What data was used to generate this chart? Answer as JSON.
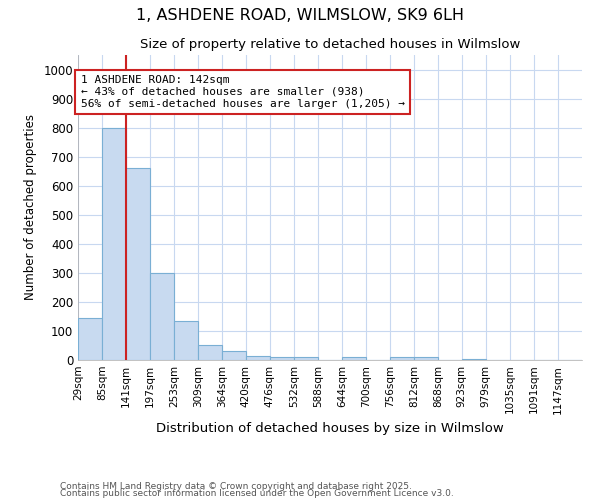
{
  "title": "1, ASHDENE ROAD, WILMSLOW, SK9 6LH",
  "subtitle": "Size of property relative to detached houses in Wilmslow",
  "xlabel": "Distribution of detached houses by size in Wilmslow",
  "ylabel": "Number of detached properties",
  "bar_edges": [
    29,
    85,
    141,
    197,
    253,
    309,
    364,
    420,
    476,
    532,
    588,
    644,
    700,
    756,
    812,
    868,
    923,
    979,
    1035,
    1091,
    1147,
    1203
  ],
  "bar_heights": [
    145,
    800,
    660,
    300,
    135,
    53,
    30,
    15,
    12,
    10,
    0,
    10,
    0,
    10,
    10,
    0,
    5,
    0,
    0,
    0,
    0
  ],
  "bar_color": "#c8daf0",
  "bar_edgecolor": "#7aafd4",
  "property_line_x": 141,
  "property_line_color": "#cc2222",
  "annotation_text": "1 ASHDENE ROAD: 142sqm\n← 43% of detached houses are smaller (938)\n56% of semi-detached houses are larger (1,205) →",
  "annotation_box_edgecolor": "#cc2222",
  "annotation_text_color": "#000000",
  "ylim": [
    0,
    1050
  ],
  "yticks": [
    0,
    100,
    200,
    300,
    400,
    500,
    600,
    700,
    800,
    900,
    1000
  ],
  "footer1": "Contains HM Land Registry data © Crown copyright and database right 2025.",
  "footer2": "Contains public sector information licensed under the Open Government Licence v3.0.",
  "bg_color": "#ffffff",
  "grid_color": "#c8d8f0",
  "tick_labels": [
    "29sqm",
    "85sqm",
    "141sqm",
    "197sqm",
    "253sqm",
    "309sqm",
    "364sqm",
    "420sqm",
    "476sqm",
    "532sqm",
    "588sqm",
    "644sqm",
    "700sqm",
    "756sqm",
    "812sqm",
    "868sqm",
    "923sqm",
    "979sqm",
    "1035sqm",
    "1091sqm",
    "1147sqm"
  ]
}
